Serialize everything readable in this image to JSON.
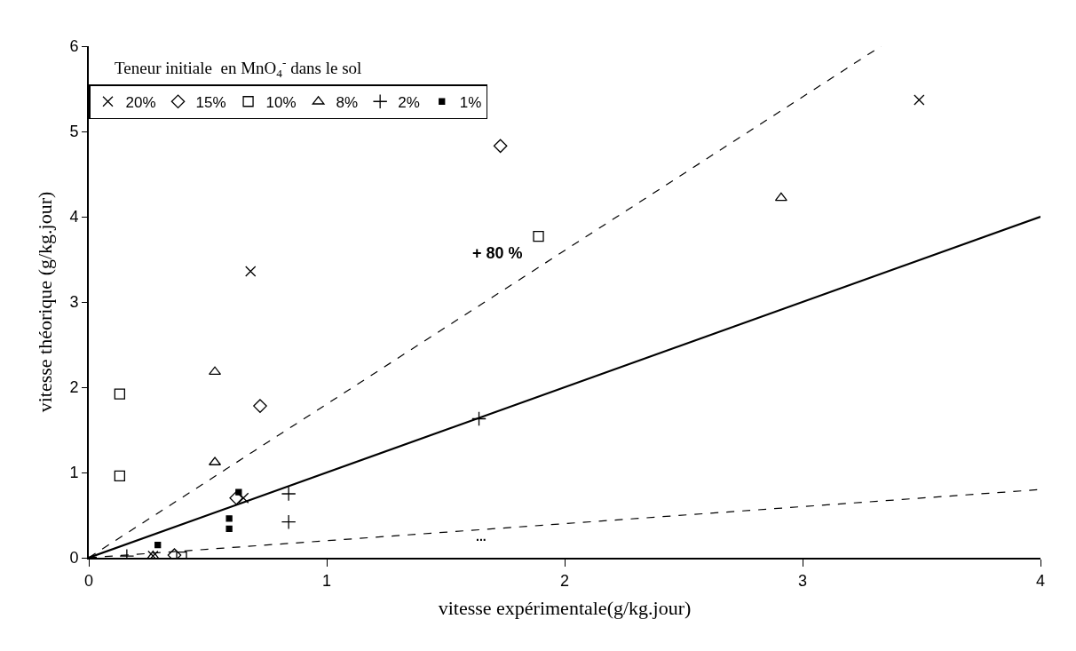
{
  "chart_data": {
    "type": "scatter",
    "xlabel": "vitesse expérimentale(g/kg.jour)",
    "ylabel": "vitesse théorique (g/kg.jour)",
    "legend_title": "Teneur initiale  en MnO$_{4}$$^{-}$ dans le sol",
    "legend": "top left",
    "grid": false,
    "xlim": [
      0,
      4
    ],
    "ylim": [
      0,
      6
    ],
    "xticks": [
      0,
      1,
      2,
      3,
      4
    ],
    "yticks": [
      0,
      1,
      2,
      3,
      4,
      5,
      6
    ],
    "series": [
      {
        "name": "20%",
        "color": "#000000",
        "marker": "cross",
        "x": [
          0.68,
          3.49,
          0.65,
          0.27
        ],
        "values": [
          3.36,
          5.37,
          0.7,
          0.02
        ]
      },
      {
        "name": "15%",
        "color": "#000000",
        "marker": "diamond",
        "x": [
          1.73,
          0.72,
          0.62,
          0.36
        ],
        "values": [
          4.83,
          1.78,
          0.7,
          0.03
        ]
      },
      {
        "name": "10%",
        "color": "#000000",
        "marker": "square",
        "x": [
          1.89,
          0.13,
          0.13,
          0.39
        ],
        "values": [
          3.77,
          1.92,
          0.96,
          0.01
        ]
      },
      {
        "name": "8%",
        "color": "#000000",
        "marker": "triangle",
        "x": [
          2.91,
          0.53,
          0.53,
          0.27
        ],
        "values": [
          4.22,
          2.18,
          1.12,
          0.02
        ]
      },
      {
        "name": "2%",
        "color": "#000000",
        "marker": "plus",
        "x": [
          1.64,
          0.84,
          0.84,
          0.16
        ],
        "values": [
          1.63,
          0.75,
          0.42,
          0.02
        ]
      },
      {
        "name": "1%",
        "color": "#000000",
        "x": [
          0.63,
          0.59,
          0.59,
          0.29
        ],
        "values": [
          0.77,
          0.46,
          0.34,
          0.15
        ]
      },
      {
        "type": "line",
        "color": "#000000",
        "line_style": "solid",
        "x": [
          0,
          4
        ],
        "values": [
          0,
          4
        ]
      },
      {
        "type": "line",
        "color": "#000000",
        "line_style": "dashed",
        "x": [
          0,
          3.33
        ],
        "values": [
          0,
          6
        ]
      },
      {
        "type": "line",
        "color": "#000000",
        "line_style": "dashed",
        "x": [
          0,
          4
        ],
        "values": [
          0,
          0.8
        ]
      }
    ],
    "annotations": [
      "+ 80 %",
      "..."
    ]
  }
}
